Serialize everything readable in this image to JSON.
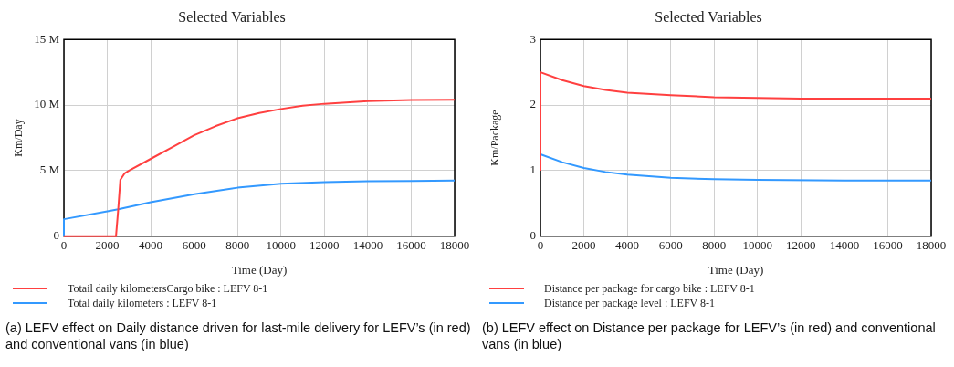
{
  "chart_data": [
    {
      "type": "line",
      "title": "Selected Variables",
      "xlabel": "Time (Day)",
      "ylabel": "Km/Day",
      "xlim": [
        0,
        18000
      ],
      "xticks": [
        0,
        2000,
        4000,
        6000,
        8000,
        10000,
        12000,
        14000,
        16000,
        18000
      ],
      "ylim": [
        0,
        15000000
      ],
      "yticks": [
        {
          "value": 0,
          "label": "0"
        },
        {
          "value": 5000000,
          "label": "5 M"
        },
        {
          "value": 10000000,
          "label": "10 M"
        },
        {
          "value": 15000000,
          "label": "15 M"
        }
      ],
      "grid": true,
      "legend": "bottom left",
      "marker": "none",
      "series": [
        {
          "name": "Totail daily kilometersCargo bike : LEFV 8-1",
          "color": "#ff4040",
          "x": [
            0,
            2400,
            2500,
            2600,
            2800,
            3000,
            4000,
            5000,
            6000,
            7000,
            8000,
            9000,
            10000,
            11000,
            12000,
            14000,
            16000,
            18000
          ],
          "values": [
            0,
            0,
            2000000,
            4300000,
            4800000,
            5000000,
            5900000,
            6800000,
            7700000,
            8400000,
            9000000,
            9400000,
            9700000,
            9950000,
            10100000,
            10300000,
            10380000,
            10400000
          ]
        },
        {
          "name": "Total daily kilometers : LEFV 8-1",
          "color": "#3399ff",
          "x": [
            0,
            0,
            2000,
            2500,
            4000,
            6000,
            8000,
            10000,
            12000,
            14000,
            16000,
            18000
          ],
          "values": [
            0,
            1300000,
            1900000,
            2050000,
            2600000,
            3200000,
            3700000,
            4000000,
            4120000,
            4200000,
            4220000,
            4250000
          ]
        }
      ],
      "annotations": [
        "(a) LEFV effect on Daily distance driven for last-mile delivery for LEFV’s (in red) and conventional vans (in blue)"
      ]
    },
    {
      "type": "line",
      "title": "Selected Variables",
      "xlabel": "Time (Day)",
      "ylabel": "Km/Package",
      "xlim": [
        0,
        18000
      ],
      "xticks": [
        0,
        2000,
        4000,
        6000,
        8000,
        10000,
        12000,
        14000,
        16000,
        18000
      ],
      "ylim": [
        0,
        3
      ],
      "yticks": [
        0,
        1,
        2,
        3
      ],
      "grid": true,
      "legend": "bottom left",
      "marker": "none",
      "series": [
        {
          "name": "Distance per package for cargo bike : LEFV 8-1",
          "color": "#ff4040",
          "x": [
            0,
            0,
            1000,
            2000,
            3000,
            4000,
            6000,
            8000,
            10000,
            12000,
            14000,
            18000
          ],
          "values": [
            1.0,
            2.5,
            2.38,
            2.29,
            2.23,
            2.19,
            2.15,
            2.12,
            2.11,
            2.1,
            2.1,
            2.1
          ]
        },
        {
          "name": "Distance per package level : LEFV 8-1",
          "color": "#3399ff",
          "x": [
            0,
            1000,
            2000,
            3000,
            4000,
            6000,
            8000,
            10000,
            14000,
            18000
          ],
          "values": [
            1.25,
            1.13,
            1.04,
            0.98,
            0.94,
            0.89,
            0.87,
            0.86,
            0.85,
            0.85
          ]
        }
      ],
      "annotations": [
        "(b) LEFV effect on Distance per package for LEFV’s (in red) and conventional vans (in blue)"
      ]
    }
  ]
}
